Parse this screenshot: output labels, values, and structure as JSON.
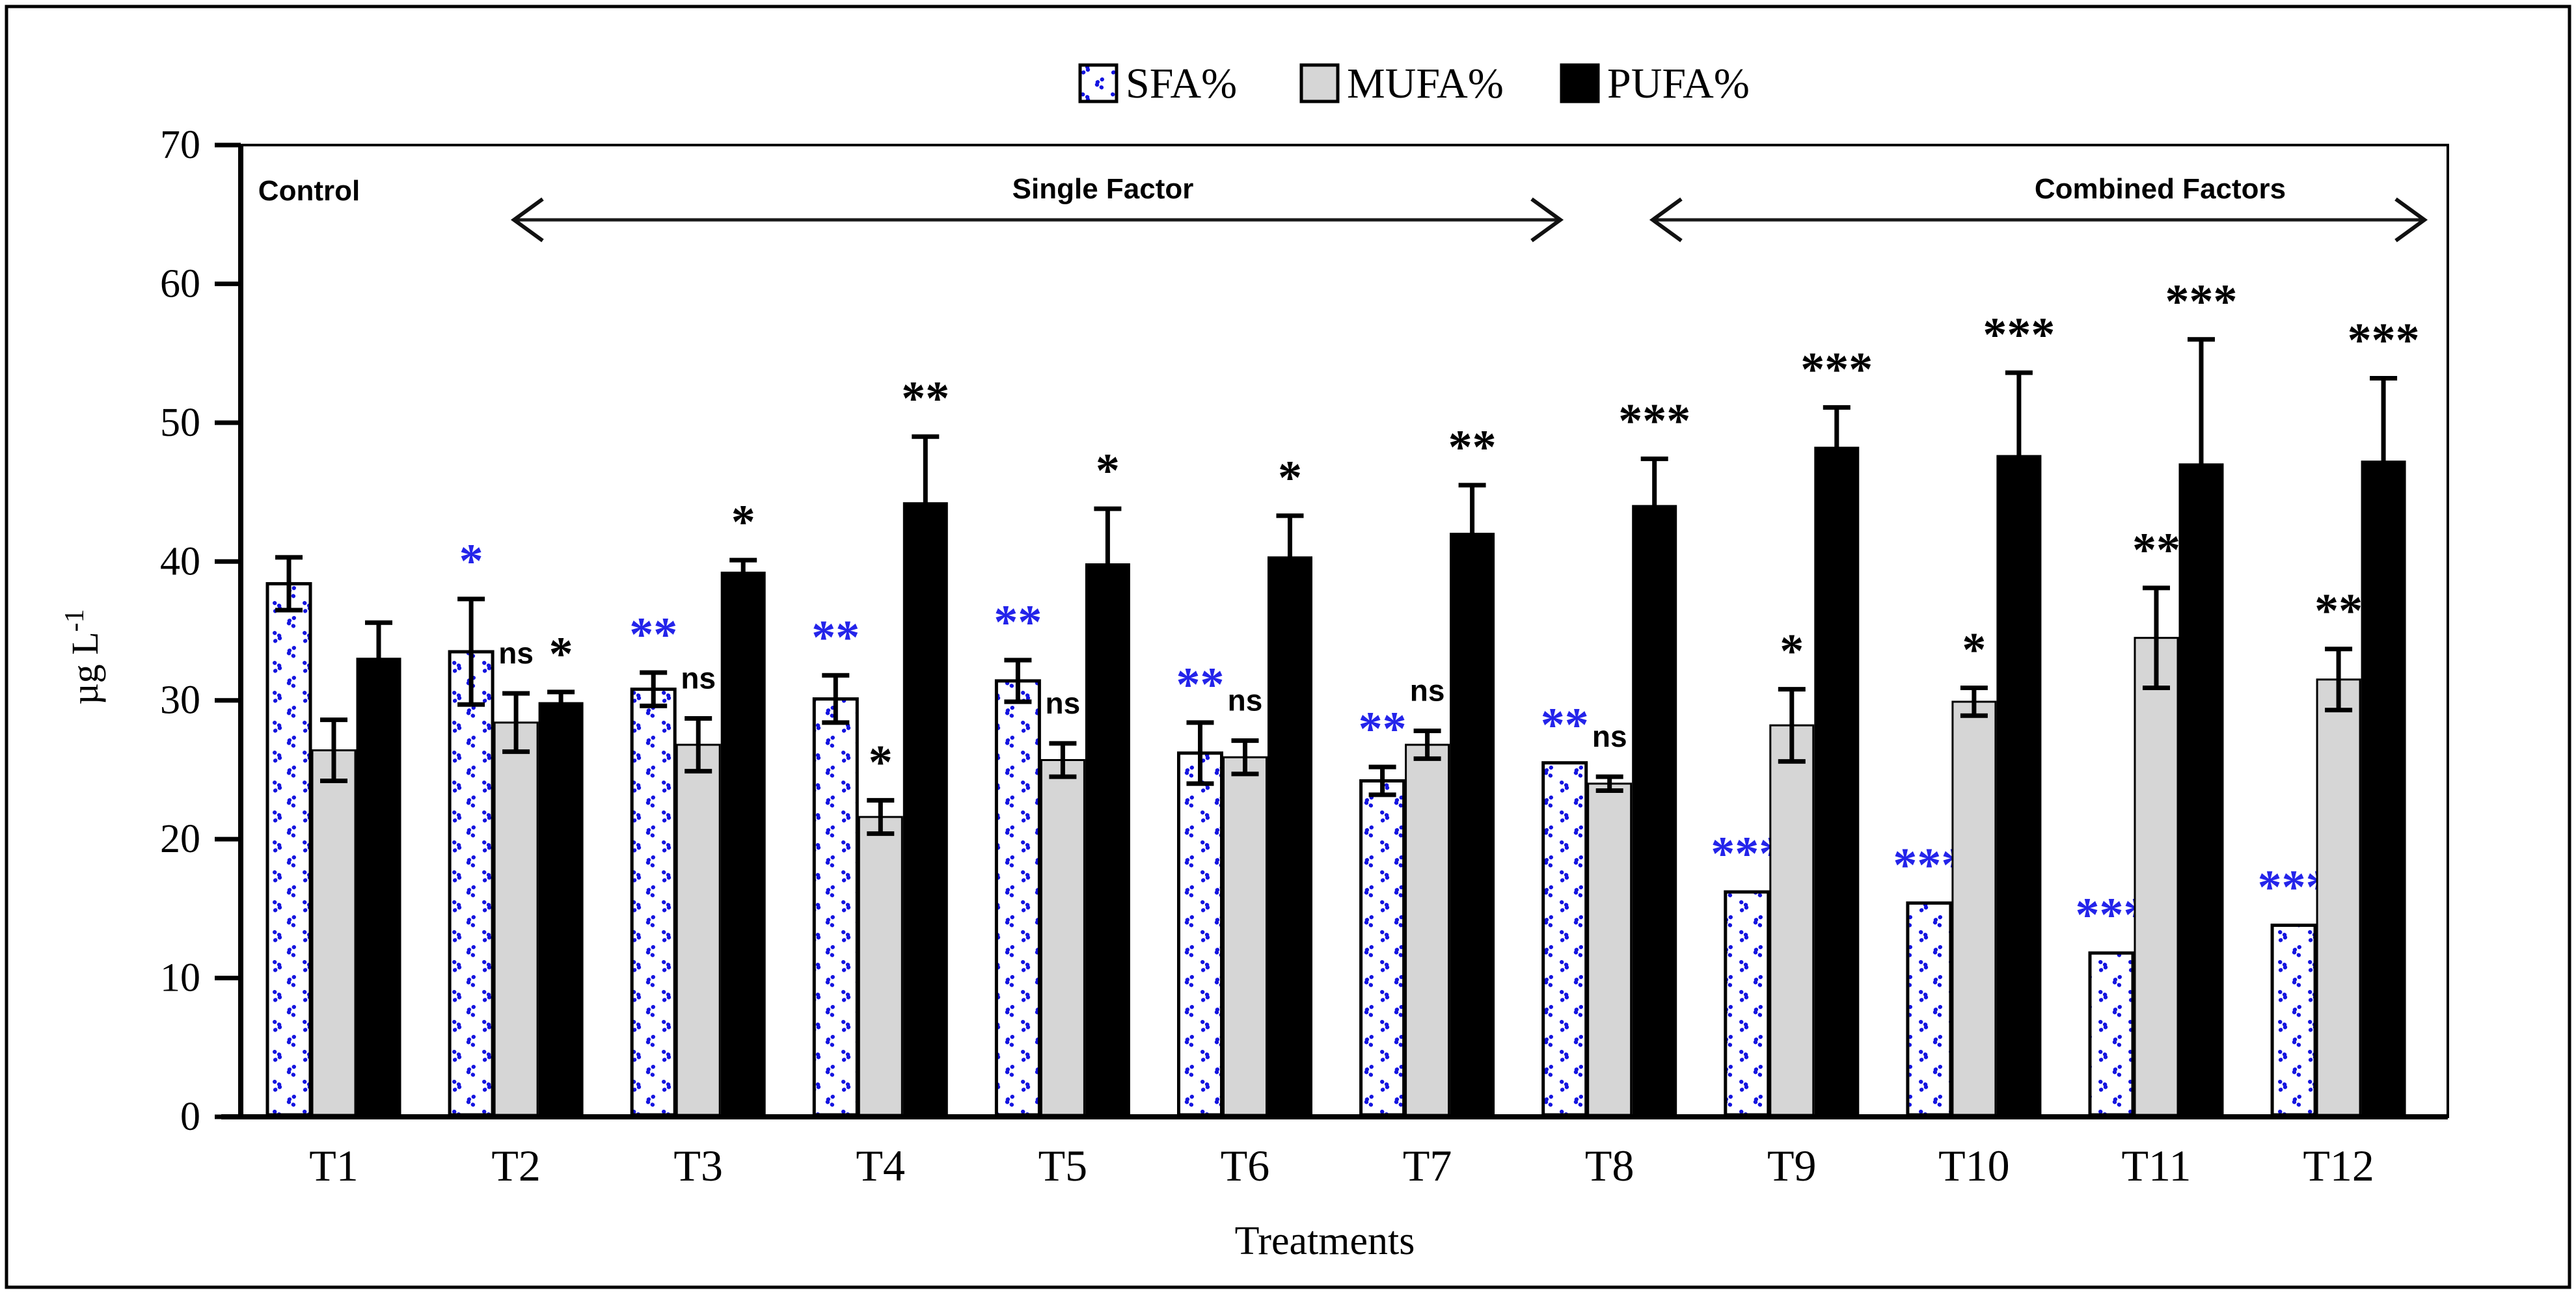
{
  "figure": {
    "background": "#ffffff",
    "border_color": "#000000"
  },
  "legend": {
    "items": [
      {
        "label": "SFA%",
        "swatch": "blue-dot-pattern"
      },
      {
        "label": "MUFA%",
        "swatch": "light-gray"
      },
      {
        "label": "PUFA%",
        "swatch": "black"
      }
    ]
  },
  "annotations": {
    "control_label": "Control",
    "single_factor_label": "Single Factor",
    "combined_factors_label": "Combined Factors"
  },
  "colors": {
    "sfa_pattern_blue": "#1414e0",
    "mufa_gray": "#d6d6d6",
    "pufa_black": "#000000",
    "blue_marker": "#2424ea",
    "axis_black": "#000000"
  },
  "chart_data": {
    "type": "bar",
    "title": "",
    "xlabel": "Treatments",
    "ylabel": "µg L-1",
    "ylim": [
      0,
      70
    ],
    "yticks": [
      0,
      10,
      20,
      30,
      40,
      50,
      60,
      70
    ],
    "grid": false,
    "legend_position": "top-center",
    "categories": [
      "T1",
      "T2",
      "T3",
      "T4",
      "T5",
      "T6",
      "T7",
      "T8",
      "T9",
      "T10",
      "T11",
      "T12"
    ],
    "series": [
      {
        "name": "SFA%",
        "values": [
          38.4,
          33.5,
          30.8,
          30.1,
          31.4,
          26.2,
          24.2,
          25.5,
          16.2,
          15.4,
          11.8,
          13.8
        ],
        "errors": [
          1.9,
          3.8,
          1.2,
          1.7,
          1.5,
          2.2,
          1.0,
          0,
          0,
          0,
          0,
          0
        ],
        "sig": [
          "",
          "*",
          "**",
          "**",
          "**",
          "**",
          "**",
          "**",
          "***",
          "***",
          "***",
          "***"
        ],
        "sig_color": "#2424ea",
        "error_style": "both"
      },
      {
        "name": "MUFA%",
        "values": [
          26.4,
          28.4,
          26.8,
          21.6,
          25.7,
          25.9,
          26.8,
          24.0,
          28.2,
          29.9,
          34.5,
          31.5
        ],
        "errors": [
          2.2,
          2.1,
          1.9,
          1.2,
          1.2,
          1.2,
          1.0,
          0.5,
          2.6,
          1.0,
          3.6,
          2.2
        ],
        "sig": [
          "",
          "ns",
          "ns",
          "*",
          "ns",
          "ns",
          "ns",
          "ns",
          "*",
          "*",
          "**",
          "**"
        ],
        "sig_color": "#000000",
        "error_style": "both"
      },
      {
        "name": "PUFA%",
        "values": [
          33.0,
          29.8,
          39.2,
          44.2,
          39.8,
          40.3,
          42.0,
          44.0,
          48.2,
          47.6,
          47.0,
          47.2
        ],
        "errors": [
          2.6,
          0.8,
          0.9,
          4.8,
          4.0,
          3.0,
          3.5,
          3.4,
          2.9,
          6.0,
          9.0,
          6.0
        ],
        "sig": [
          "",
          "*",
          "*",
          "**",
          "*",
          "*",
          "**",
          "***",
          "***",
          "***",
          "***",
          "***"
        ],
        "sig_color": "#000000",
        "error_style": "upper"
      }
    ],
    "group_annotations": [
      {
        "label_key": "control_label",
        "arrow": false
      },
      {
        "label_key": "single_factor_label",
        "arrow": true,
        "x1": 788,
        "x2": 2400,
        "text_x": 1695
      },
      {
        "label_key": "combined_factors_label",
        "arrow": true,
        "x1": 2538,
        "x2": 3728,
        "text_x": 3320
      }
    ]
  }
}
